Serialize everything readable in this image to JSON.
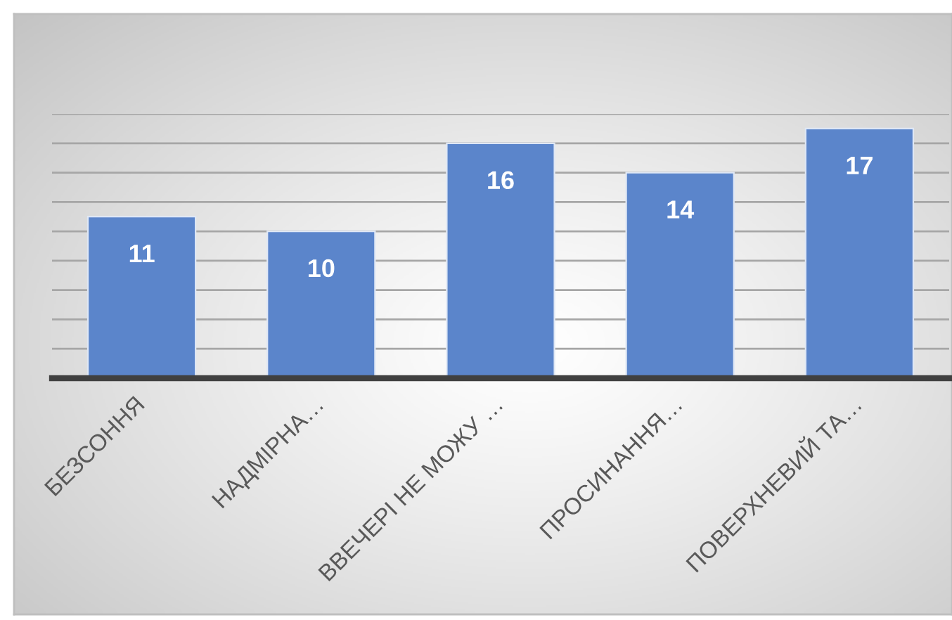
{
  "chart_data": {
    "type": "bar",
    "categories": [
      "БЕЗСОННЯ",
      "НАДМІРНА…",
      "ВВЕЧЕРІ НЕ МОЖУ …",
      "ПРОСИНАННЯ…",
      "ПОВЕРХНЕВИЙ ТА…"
    ],
    "values": [
      11,
      10,
      16,
      14,
      17
    ],
    "color": "#5b85cb",
    "ylim": [
      0,
      18
    ],
    "yticks": [
      {
        "value": 0,
        "label": null
      },
      {
        "value": 2,
        "label": null
      },
      {
        "value": 4,
        "label": null
      },
      {
        "value": 6,
        "label": null
      },
      {
        "value": 8,
        "label": null
      },
      {
        "value": 10,
        "label": null
      },
      {
        "value": 12,
        "label": null
      },
      {
        "value": 14,
        "label": null
      },
      {
        "value": 16,
        "label": null
      },
      {
        "value": 18,
        "label": null
      }
    ],
    "grid": "y",
    "tick_labels": "x",
    "data_labels": true
  }
}
